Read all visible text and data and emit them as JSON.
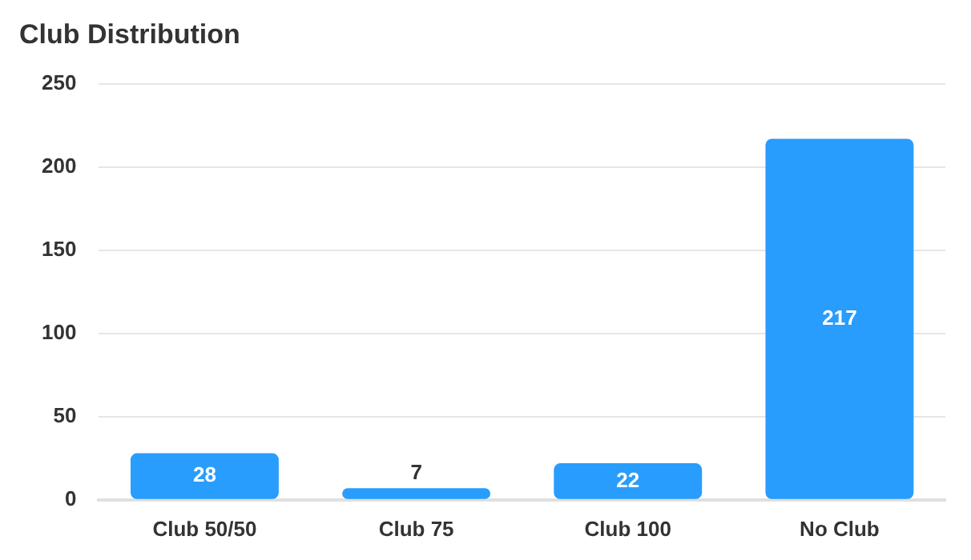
{
  "chart_data": {
    "type": "bar",
    "title": "Club Distribution",
    "categories": [
      "Club 50/50",
      "Club 75",
      "Club 100",
      "No Club"
    ],
    "values": [
      28,
      7,
      22,
      217
    ],
    "color": "#289dfd",
    "ylim": [
      0,
      250
    ],
    "yticks": [
      0,
      50,
      100,
      150,
      200,
      250
    ],
    "grid": "y",
    "data_labels": true,
    "legend": false
  }
}
